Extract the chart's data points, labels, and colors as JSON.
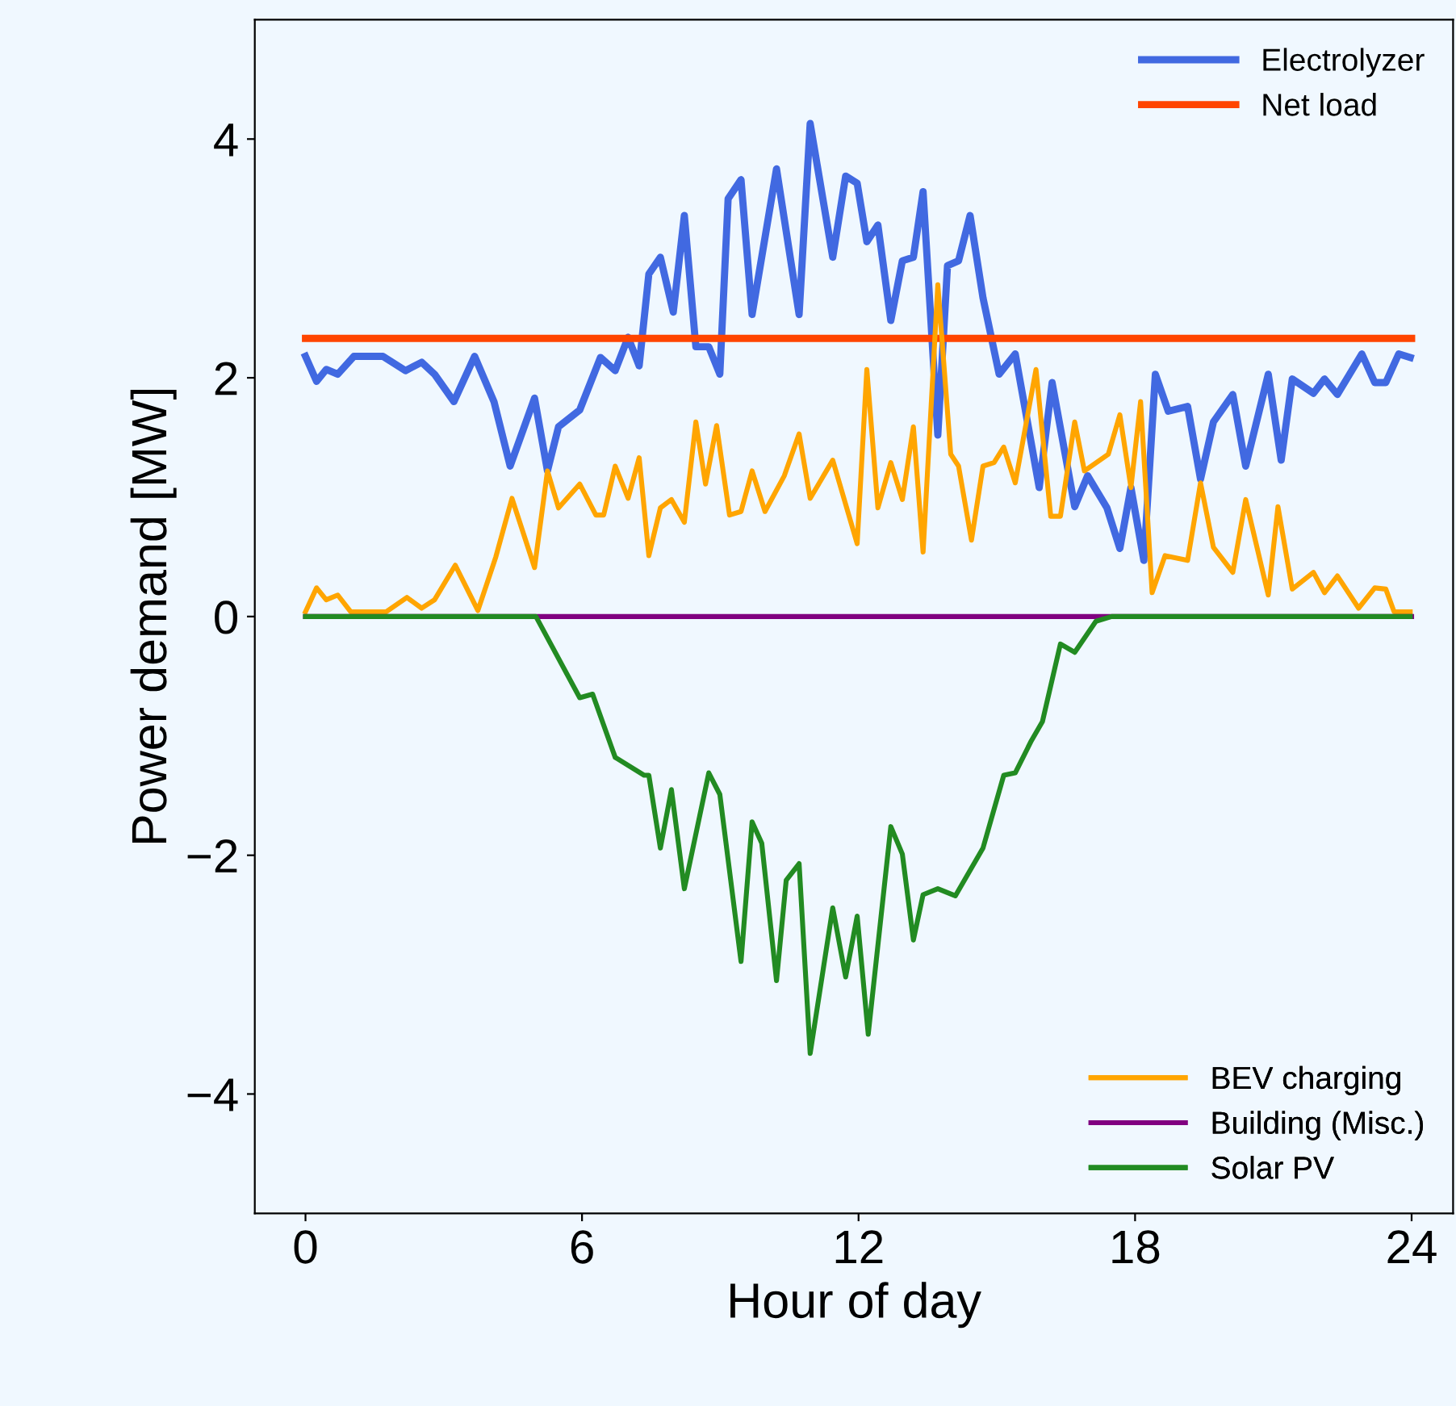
{
  "chart_data": {
    "type": "line",
    "xlabel": "Hour of day",
    "ylabel": "Power demand [MW]",
    "xlim": [
      -1.1,
      24.9
    ],
    "ylim": [
      -5,
      5
    ],
    "xticks": [
      0,
      6,
      12,
      18,
      24
    ],
    "yticks": [
      -4,
      -2,
      0,
      2,
      4
    ],
    "grid": false,
    "legend": "top right",
    "marker": "none",
    "line_style": "solid",
    "series": [
      {
        "name": "Electrolyzer",
        "color": "#4169e1",
        "x": [
          0.0,
          0.24,
          0.45,
          0.7,
          1.05,
          1.68,
          2.17,
          2.52,
          2.8,
          3.22,
          3.67,
          4.09,
          4.44,
          4.97,
          5.25,
          5.49,
          5.95,
          6.4,
          6.72,
          7.0,
          7.24,
          7.45,
          7.7,
          7.98,
          8.22,
          8.47,
          8.75,
          8.99,
          9.17,
          9.45,
          9.69,
          10.22,
          10.71,
          10.95,
          11.44,
          11.72,
          11.97,
          12.18,
          12.42,
          12.7,
          12.95,
          13.19,
          13.4,
          13.72,
          13.93,
          14.17,
          14.42,
          14.7,
          15.05,
          15.4,
          15.92,
          16.2,
          16.69,
          16.97,
          17.39,
          17.67,
          17.91,
          18.19,
          18.44,
          18.72,
          19.14,
          19.42,
          19.7,
          20.12,
          20.4,
          20.89,
          21.17,
          21.41,
          21.87,
          22.11,
          22.39,
          22.92,
          23.2,
          23.44,
          23.72,
          23.97
        ],
        "values": [
          2.18,
          1.97,
          2.07,
          2.03,
          2.18,
          2.18,
          2.06,
          2.13,
          2.03,
          1.8,
          2.18,
          1.8,
          1.26,
          1.83,
          1.22,
          1.59,
          1.73,
          2.17,
          2.06,
          2.34,
          2.1,
          2.87,
          3.01,
          2.55,
          3.36,
          2.26,
          2.26,
          2.03,
          3.5,
          3.66,
          2.53,
          3.75,
          2.53,
          4.13,
          3.01,
          3.69,
          3.63,
          3.14,
          3.28,
          2.48,
          2.98,
          3.01,
          3.56,
          1.52,
          2.94,
          2.98,
          3.36,
          2.67,
          2.03,
          2.2,
          1.08,
          1.96,
          0.92,
          1.18,
          0.91,
          0.57,
          1.08,
          0.47,
          2.03,
          1.72,
          1.76,
          1.15,
          1.63,
          1.86,
          1.26,
          2.03,
          1.31,
          1.99,
          1.87,
          1.99,
          1.86,
          2.2,
          1.96,
          1.96,
          2.2,
          2.17
        ]
      },
      {
        "name": "Net load",
        "color": "#ff4500",
        "x": [
          0,
          24
        ],
        "values": [
          2.33,
          2.33
        ]
      },
      {
        "name": "BEV charging",
        "color": "#ffa500",
        "x": [
          0.0,
          0.24,
          0.45,
          0.7,
          0.98,
          1.75,
          2.2,
          2.52,
          2.8,
          3.25,
          3.74,
          4.13,
          4.48,
          4.97,
          5.25,
          5.49,
          5.95,
          6.3,
          6.47,
          6.72,
          7.0,
          7.24,
          7.45,
          7.7,
          7.94,
          8.22,
          8.47,
          8.68,
          8.92,
          9.2,
          9.45,
          9.69,
          9.97,
          10.39,
          10.71,
          10.95,
          11.44,
          11.97,
          12.18,
          12.42,
          12.7,
          12.95,
          13.19,
          13.4,
          13.72,
          14.0,
          14.17,
          14.45,
          14.7,
          14.94,
          15.15,
          15.4,
          15.85,
          16.17,
          16.38,
          16.69,
          16.9,
          17.42,
          17.67,
          17.91,
          18.12,
          18.37,
          18.65,
          19.14,
          19.42,
          19.7,
          20.12,
          20.4,
          20.89,
          21.1,
          21.41,
          21.87,
          22.11,
          22.39,
          22.85,
          23.2,
          23.44,
          23.62,
          23.97
        ],
        "values": [
          0.04,
          0.24,
          0.14,
          0.18,
          0.04,
          0.04,
          0.16,
          0.07,
          0.14,
          0.43,
          0.05,
          0.5,
          0.99,
          0.41,
          1.22,
          0.91,
          1.11,
          0.85,
          0.85,
          1.26,
          0.99,
          1.33,
          0.51,
          0.91,
          0.98,
          0.79,
          1.63,
          1.11,
          1.6,
          0.85,
          0.88,
          1.22,
          0.88,
          1.18,
          1.53,
          0.99,
          1.31,
          0.61,
          2.07,
          0.91,
          1.29,
          0.98,
          1.59,
          0.54,
          2.78,
          1.36,
          1.26,
          0.64,
          1.26,
          1.29,
          1.42,
          1.12,
          2.07,
          0.84,
          0.84,
          1.63,
          1.22,
          1.36,
          1.69,
          1.08,
          1.8,
          0.2,
          0.51,
          0.47,
          1.12,
          0.58,
          0.37,
          0.98,
          0.18,
          0.92,
          0.23,
          0.37,
          0.2,
          0.34,
          0.07,
          0.24,
          0.23,
          0.04,
          0.04
        ]
      },
      {
        "name": "Building (Misc.)",
        "color": "#800080",
        "x": [
          0,
          24
        ],
        "values": [
          0,
          0
        ]
      },
      {
        "name": "Solar PV",
        "color": "#228b22",
        "x": [
          0.0,
          5.0,
          5.95,
          6.23,
          6.72,
          7.35,
          7.45,
          7.7,
          7.94,
          8.22,
          8.75,
          8.99,
          9.45,
          9.69,
          9.9,
          10.22,
          10.43,
          10.71,
          10.95,
          11.44,
          11.72,
          11.97,
          12.21,
          12.7,
          12.95,
          13.19,
          13.4,
          13.72,
          14.1,
          14.7,
          15.15,
          15.4,
          15.75,
          15.99,
          16.38,
          16.69,
          17.15,
          17.49,
          23.97
        ],
        "values": [
          0,
          0,
          -0.68,
          -0.65,
          -1.18,
          -1.33,
          -1.33,
          -1.94,
          -1.45,
          -2.28,
          -1.31,
          -1.49,
          -2.89,
          -1.72,
          -1.9,
          -3.05,
          -2.21,
          -2.07,
          -3.66,
          -2.44,
          -3.02,
          -2.51,
          -3.5,
          -1.76,
          -1.99,
          -2.71,
          -2.33,
          -2.28,
          -2.34,
          -1.94,
          -1.33,
          -1.31,
          -1.04,
          -0.88,
          -0.23,
          -0.3,
          -0.04,
          0,
          0
        ]
      }
    ]
  }
}
